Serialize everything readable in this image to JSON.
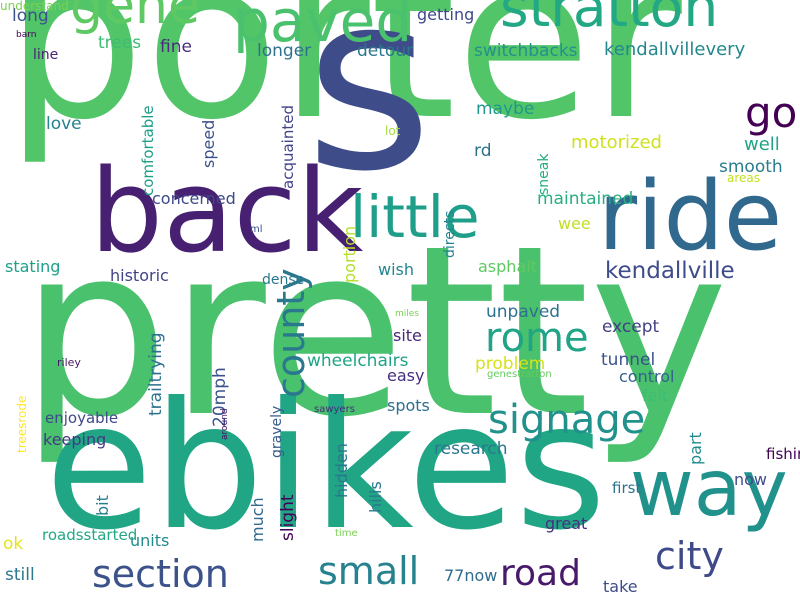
{
  "words": [
    {
      "text": "porter",
      "color": "#52c569",
      "vertical": false
    },
    {
      "text": "pretty",
      "color": "#4ac16d",
      "vertical": false
    },
    {
      "text": "ebikes",
      "color": "#21a685",
      "vertical": false
    },
    {
      "text": "s",
      "color": "#3e4c8a",
      "vertical": false
    },
    {
      "text": "back",
      "color": "#482071",
      "vertical": false
    },
    {
      "text": "ride",
      "color": "#31688e",
      "vertical": false
    },
    {
      "text": "way",
      "color": "#21918c",
      "vertical": false
    },
    {
      "text": "stratton",
      "color": "#22a884",
      "vertical": false
    },
    {
      "text": "gene",
      "color": "#5ec962",
      "vertical": false
    },
    {
      "text": "paved",
      "color": "#4ac16d",
      "vertical": false
    },
    {
      "text": "little",
      "color": "#1f9e89",
      "vertical": false
    },
    {
      "text": "go",
      "color": "#440154",
      "vertical": false
    },
    {
      "text": "county",
      "color": "#2a788e",
      "vertical": true
    },
    {
      "text": "signage",
      "color": "#21918c",
      "vertical": false
    },
    {
      "text": "rome",
      "color": "#20a486",
      "vertical": false
    },
    {
      "text": "section",
      "color": "#3b528b",
      "vertical": false
    },
    {
      "text": "small",
      "color": "#26828e",
      "vertical": false
    },
    {
      "text": "road",
      "color": "#481a6c",
      "vertical": false
    },
    {
      "text": "city",
      "color": "#3e4a89",
      "vertical": false
    },
    {
      "text": "kendallville",
      "color": "#3e4c8a",
      "vertical": false
    },
    {
      "text": "kendallvillevery",
      "color": "#24878e",
      "vertical": false
    },
    {
      "text": "long",
      "color": "#3b528b",
      "vertical": false
    },
    {
      "text": "trees",
      "color": "#3dbc74",
      "vertical": false
    },
    {
      "text": "fine",
      "color": "#472d7b",
      "vertical": false
    },
    {
      "text": "longer",
      "color": "#2c728e",
      "vertical": false
    },
    {
      "text": "detour",
      "color": "#2a768e",
      "vertical": false
    },
    {
      "text": "getting",
      "color": "#3e4989",
      "vertical": false
    },
    {
      "text": "switchbacks",
      "color": "#21918c",
      "vertical": false
    },
    {
      "text": "barn",
      "color": "#440154",
      "vertical": false
    },
    {
      "text": "line",
      "color": "#482475",
      "vertical": false
    },
    {
      "text": "love",
      "color": "#26828e",
      "vertical": false
    },
    {
      "text": "comfortable",
      "color": "#1f9e89",
      "vertical": true
    },
    {
      "text": "speed",
      "color": "#3b528b",
      "vertical": true
    },
    {
      "text": "acquainted",
      "color": "#414487",
      "vertical": true
    },
    {
      "text": "lot",
      "color": "#a0da39",
      "vertical": false
    },
    {
      "text": "directs",
      "color": "#25858e",
      "vertical": true
    },
    {
      "text": "maybe",
      "color": "#1f988b",
      "vertical": false
    },
    {
      "text": "rd",
      "color": "#2c728e",
      "vertical": false
    },
    {
      "text": "sneak",
      "color": "#27ad81",
      "vertical": true
    },
    {
      "text": "motorized",
      "color": "#d0e11c",
      "vertical": false
    },
    {
      "text": "well",
      "color": "#20a386",
      "vertical": false
    },
    {
      "text": "smooth",
      "color": "#287d8e",
      "vertical": false
    },
    {
      "text": "areas",
      "color": "#c2df23",
      "vertical": false
    },
    {
      "text": "concerned",
      "color": "#3e4989",
      "vertical": false
    },
    {
      "text": "maintained",
      "color": "#28ae80",
      "vertical": false
    },
    {
      "text": "wee",
      "color": "#c0df25",
      "vertical": false
    },
    {
      "text": "ml",
      "color": "#3c4f8a",
      "vertical": false
    },
    {
      "text": "portion",
      "color": "#b5de2b",
      "vertical": true
    },
    {
      "text": "stating",
      "color": "#1fa088",
      "vertical": false
    },
    {
      "text": "historic",
      "color": "#414487",
      "vertical": false
    },
    {
      "text": "dense",
      "color": "#2a788e",
      "vertical": false
    },
    {
      "text": "wish",
      "color": "#25858e",
      "vertical": false
    },
    {
      "text": "asphalt",
      "color": "#5ec962",
      "vertical": false
    },
    {
      "text": "unpaved",
      "color": "#2d708e",
      "vertical": false
    },
    {
      "text": "site",
      "color": "#482878",
      "vertical": false
    },
    {
      "text": "except",
      "color": "#424186",
      "vertical": false
    },
    {
      "text": "miles",
      "color": "#7ad151",
      "vertical": false
    },
    {
      "text": "riley",
      "color": "#481769",
      "vertical": false
    },
    {
      "text": "trailtrying",
      "color": "#2c728e",
      "vertical": true
    },
    {
      "text": "20mph",
      "color": "#3b528b",
      "vertical": true
    },
    {
      "text": "wheelchairs",
      "color": "#20a486",
      "vertical": false
    },
    {
      "text": "problem",
      "color": "#d8e219",
      "vertical": false
    },
    {
      "text": "easy",
      "color": "#472f7d",
      "vertical": false
    },
    {
      "text": "tunnel",
      "color": "#3b528b",
      "vertical": false
    },
    {
      "text": "control",
      "color": "#33638d",
      "vertical": false
    },
    {
      "text": "genestratton",
      "color": "#63cb5f",
      "vertical": false
    },
    {
      "text": "treesrode",
      "color": "#fde725",
      "vertical": true
    },
    {
      "text": "enjoyable",
      "color": "#3e4989",
      "vertical": false
    },
    {
      "text": "keeping",
      "color": "#443983",
      "vertical": false
    },
    {
      "text": "around",
      "color": "#471164",
      "vertical": true
    },
    {
      "text": "gravely",
      "color": "#375a8c",
      "vertical": true
    },
    {
      "text": "sawyers",
      "color": "#472c7a",
      "vertical": false
    },
    {
      "text": "spots",
      "color": "#2e6e8e",
      "vertical": false
    },
    {
      "text": "research",
      "color": "#2a788e",
      "vertical": false
    },
    {
      "text": "felt",
      "color": "#3dbc74",
      "vertical": false
    },
    {
      "text": "fishing",
      "color": "#440154",
      "vertical": false
    },
    {
      "text": "hidden",
      "color": "#2a768e",
      "vertical": true
    },
    {
      "text": "hills",
      "color": "#2a788e",
      "vertical": true
    },
    {
      "text": "much",
      "color": "#31688e",
      "vertical": true
    },
    {
      "text": "slight",
      "color": "#440154",
      "vertical": true
    },
    {
      "text": "part",
      "color": "#228c8d",
      "vertical": true
    },
    {
      "text": "now",
      "color": "#3e4c8a",
      "vertical": false
    },
    {
      "text": "first",
      "color": "#2c728e",
      "vertical": false
    },
    {
      "text": "roadsstarted",
      "color": "#22a884",
      "vertical": false
    },
    {
      "text": "bit",
      "color": "#277f8e",
      "vertical": true
    },
    {
      "text": "units",
      "color": "#228c8d",
      "vertical": false
    },
    {
      "text": "ok",
      "color": "#e5e419",
      "vertical": false
    },
    {
      "text": "time",
      "color": "#7ad151",
      "vertical": false
    },
    {
      "text": "great",
      "color": "#46307e",
      "vertical": false
    },
    {
      "text": "still",
      "color": "#2a788e",
      "vertical": false
    },
    {
      "text": "77now",
      "color": "#2f6c8e",
      "vertical": false
    },
    {
      "text": "take",
      "color": "#3e4c8a",
      "vertical": false
    },
    {
      "text": "understand",
      "color": "#7ad151",
      "vertical": false
    }
  ]
}
